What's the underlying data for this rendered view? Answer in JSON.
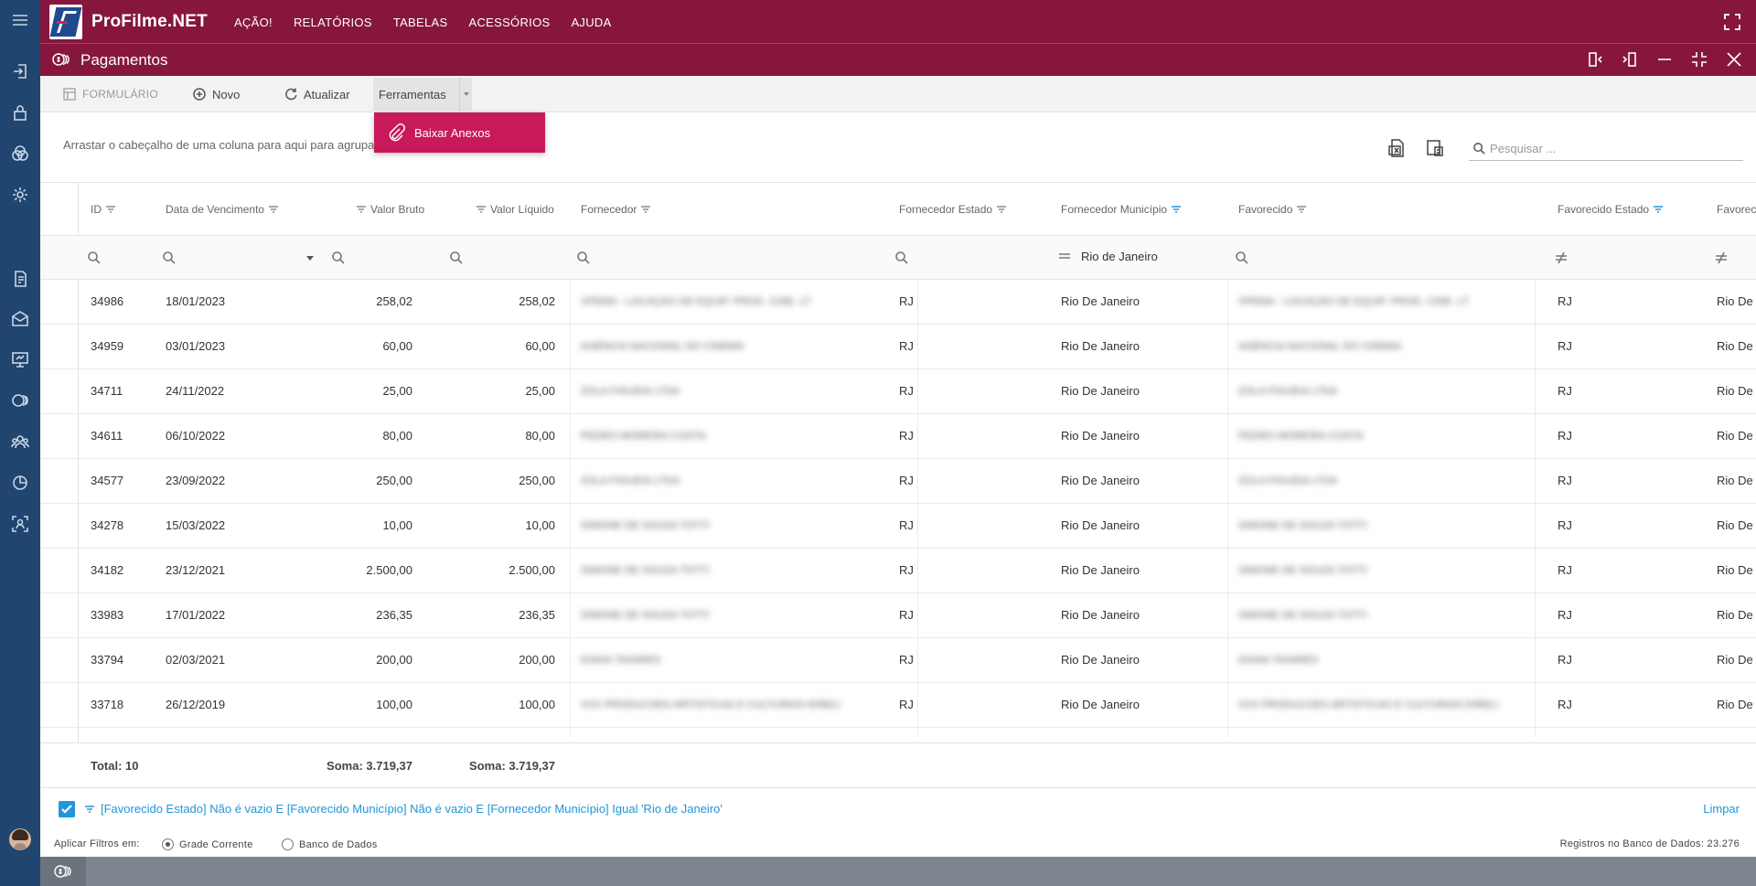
{
  "app": {
    "title": "ProFilme.NET"
  },
  "menu": [
    "AÇÃO!",
    "RELATÓRIOS",
    "TABELAS",
    "ACESSÓRIOS",
    "AJUDA"
  ],
  "window": {
    "title": "Pagamentos"
  },
  "toolbar": {
    "formulario": "FORMULÁRIO",
    "novo": "Novo",
    "atualizar": "Atualizar",
    "ferramentas": "Ferramentas"
  },
  "dropdown": {
    "baixar_anexos": "Baixar Anexos"
  },
  "grouping": {
    "hint": "Arrastar o cabeçalho de uma coluna para aqui para agrupar"
  },
  "search": {
    "placeholder": "Pesquisar ..."
  },
  "columns": {
    "id": "ID",
    "vencimento": "Data de Vencimento",
    "bruto": "Valor Bruto",
    "liquido": "Valor Líquido",
    "fornecedor": "Fornecedor",
    "forn_estado": "Fornecedor Estado",
    "forn_municipio": "Fornecedor Município",
    "favorecido": "Favorecido",
    "fav_estado": "Favorecido Estado",
    "fav_municipio": "Favorec"
  },
  "filter_row": {
    "forn_municipio_value": "Rio de Janeiro"
  },
  "rows": [
    {
      "id": "34986",
      "venc": "18/01/2023",
      "bruto": "258,02",
      "liquido": "258,02",
      "fornecedor": "XPEMA - LOCAÇÃO DE EQUIP. PROD. CINE. LT",
      "forn_estado": "RJ",
      "forn_mun": "Rio De Janeiro",
      "favorecido": "XPEMA - LOCAÇÃO DE EQUIP. PROD. CINE. LT",
      "fav_estado": "RJ",
      "fav_mun": "Rio De"
    },
    {
      "id": "34959",
      "venc": "03/01/2023",
      "bruto": "60,00",
      "liquido": "60,00",
      "fornecedor": "AGÊNCIA NACIONAL DO CINEMA",
      "forn_estado": "RJ",
      "forn_mun": "Rio De Janeiro",
      "favorecido": "AGÊNCIA NACIONAL DO CINEMA",
      "fav_estado": "RJ",
      "fav_mun": "Rio De"
    },
    {
      "id": "34711",
      "venc": "24/11/2022",
      "bruto": "25,00",
      "liquido": "25,00",
      "fornecedor": "ZOLA FIGUEIA LTDA",
      "forn_estado": "RJ",
      "forn_mun": "Rio De Janeiro",
      "favorecido": "ZOLA FIGUEIA LTDA",
      "fav_estado": "RJ",
      "fav_mun": "Rio De"
    },
    {
      "id": "34611",
      "venc": "06/10/2022",
      "bruto": "80,00",
      "liquido": "80,00",
      "fornecedor": "PEDRO MOREIRA COSTA",
      "forn_estado": "RJ",
      "forn_mun": "Rio De Janeiro",
      "favorecido": "PEDRO MOREIRA COSTA",
      "fav_estado": "RJ",
      "fav_mun": "Rio De"
    },
    {
      "id": "34577",
      "venc": "23/09/2022",
      "bruto": "250,00",
      "liquido": "250,00",
      "fornecedor": "ZOLA FIGUEIA LTDA",
      "forn_estado": "RJ",
      "forn_mun": "Rio De Janeiro",
      "favorecido": "ZOLA FIGUEIA LTDA",
      "fav_estado": "RJ",
      "fav_mun": "Rio De"
    },
    {
      "id": "34278",
      "venc": "15/03/2022",
      "bruto": "10,00",
      "liquido": "10,00",
      "fornecedor": "SIMONE DE SOUZA TOTTI",
      "forn_estado": "RJ",
      "forn_mun": "Rio De Janeiro",
      "favorecido": "SIMONE DE SOUZA TOTTI",
      "fav_estado": "RJ",
      "fav_mun": "Rio De"
    },
    {
      "id": "34182",
      "venc": "23/12/2021",
      "bruto": "2.500,00",
      "liquido": "2.500,00",
      "fornecedor": "SIMONE DE SOUZA TOTTI",
      "forn_estado": "RJ",
      "forn_mun": "Rio De Janeiro",
      "favorecido": "SIMONE DE SOUZA TOTTI",
      "fav_estado": "RJ",
      "fav_mun": "Rio De"
    },
    {
      "id": "33983",
      "venc": "17/01/2022",
      "bruto": "236,35",
      "liquido": "236,35",
      "fornecedor": "SIMONE DE SOUZA TOTTI",
      "forn_estado": "RJ",
      "forn_mun": "Rio De Janeiro",
      "favorecido": "SIMONE DE SOUZA TOTTI",
      "fav_estado": "RJ",
      "fav_mun": "Rio De"
    },
    {
      "id": "33794",
      "venc": "02/03/2021",
      "bruto": "200,00",
      "liquido": "200,00",
      "fornecedor": "DIANA TAVARES",
      "forn_estado": "RJ",
      "forn_mun": "Rio De Janeiro",
      "favorecido": "DIANA TAVARES",
      "fav_estado": "RJ",
      "fav_mun": "Rio De"
    },
    {
      "id": "33718",
      "venc": "26/12/2019",
      "bruto": "100,00",
      "liquido": "100,00",
      "fornecedor": "XXX PRODUCOES ARTISTICAS E CULTURAIS EIRELI",
      "forn_estado": "RJ",
      "forn_mun": "Rio De Janeiro",
      "favorecido": "XXX PRODUCOES ARTISTICAS E CULTURAIS EIRELI",
      "fav_estado": "RJ",
      "fav_mun": "Rio De"
    }
  ],
  "totals": {
    "count": "Total: 10",
    "bruto": "Soma: 3.719,37",
    "liquido": "Soma: 3.719,37"
  },
  "active_filter": {
    "text": "[Favorecido Estado] Não é vazio E [Favorecido Município] Não é vazio E [Fornecedor Município] Igual 'Rio de Janeiro'",
    "clear": "Limpar"
  },
  "apply": {
    "label": "Aplicar Filtros em:",
    "grade": "Grade Corrente",
    "banco": "Banco de Dados",
    "registros": "Registros no Banco de Dados: 23.276"
  },
  "colors": {
    "brand": "#86163d",
    "rail": "#20456e",
    "accent": "#c8195a",
    "link": "#2196d8"
  }
}
